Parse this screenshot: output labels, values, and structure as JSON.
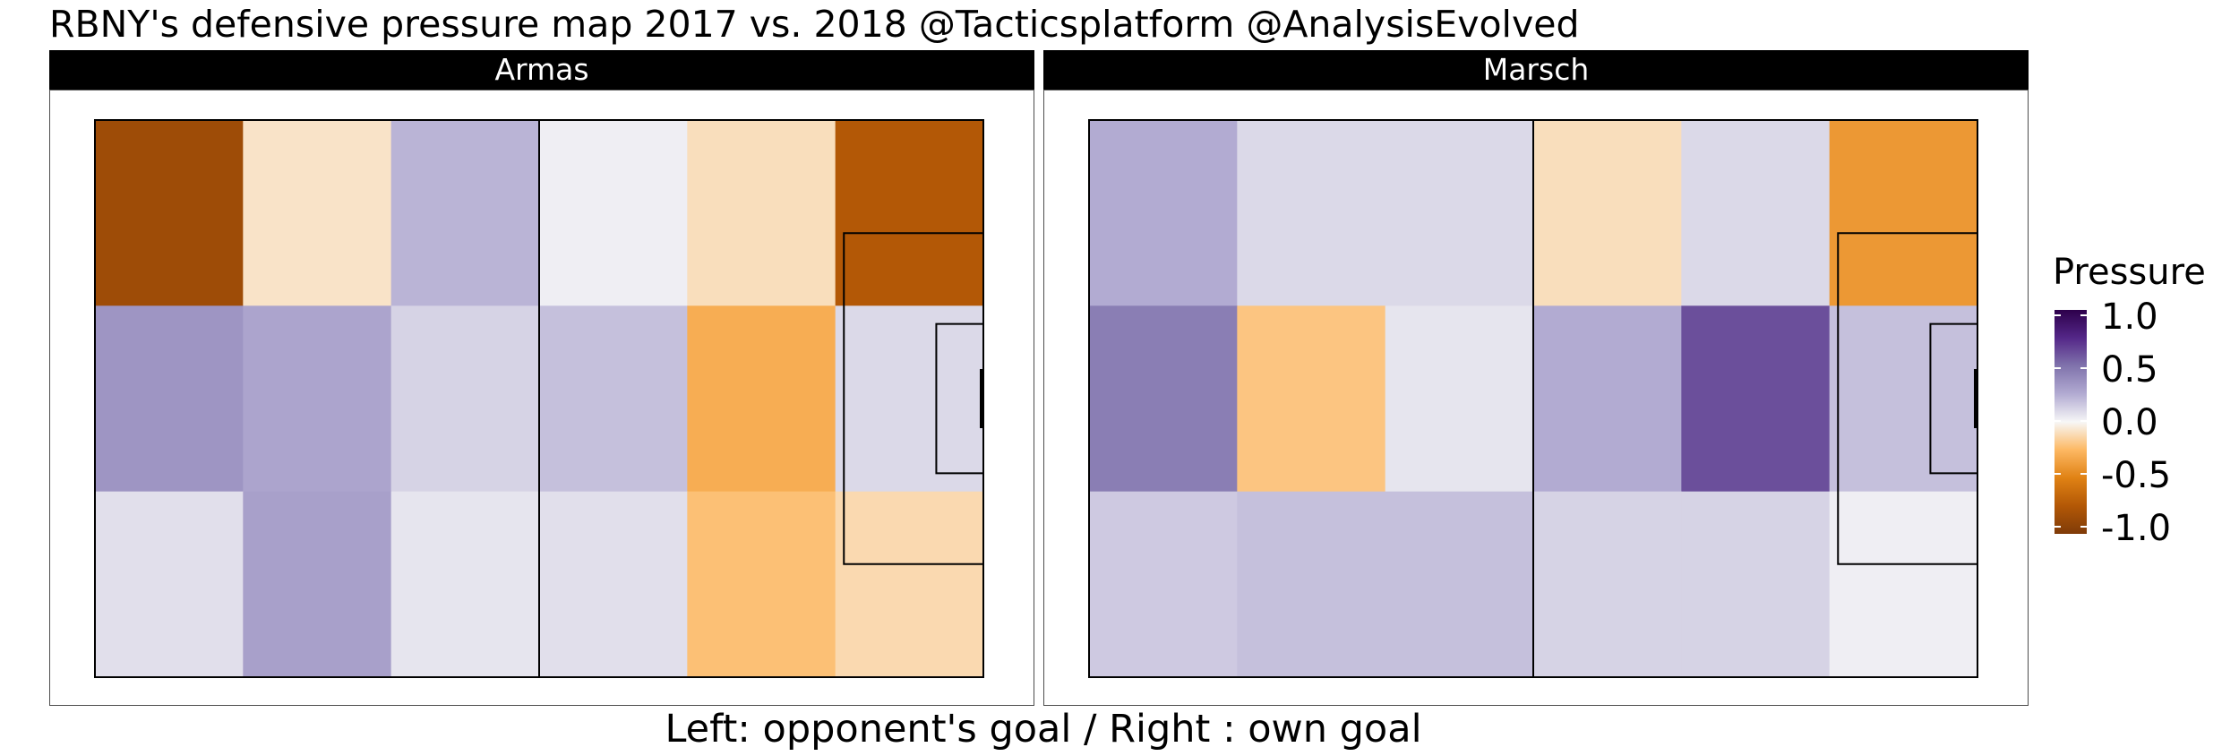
{
  "title": "RBNY's defensive pressure map 2017 vs. 2018 @Tacticsplatform @AnalysisEvolved",
  "caption": "Left: opponent's goal / Right : own goal",
  "legend": {
    "title": "Pressure",
    "ticks": [
      "1.0",
      "0.5",
      "0.0",
      "-0.5",
      "-1.0"
    ]
  },
  "chart_data": {
    "type": "heatmap",
    "title": "RBNY's defensive pressure map 2017 vs. 2018 @Tacticsplatform @AnalysisEvolved",
    "xlabel": "Left: opponent's goal / Right : own goal",
    "value_range": [
      -1.0,
      1.0
    ],
    "legend_title": "Pressure",
    "legend_placement": "right",
    "colormap": "diverging orange-white-purple (PuOr)",
    "grid_shape": {
      "rows": 3,
      "cols": 6
    },
    "panels": [
      {
        "name": "Armas",
        "values": [
          [
            -0.85,
            -0.08,
            0.22,
            0.03,
            -0.1,
            -0.75
          ],
          [
            0.35,
            0.28,
            0.12,
            0.18,
            -0.3,
            0.1
          ],
          [
            0.08,
            0.3,
            0.06,
            0.08,
            -0.22,
            -0.12
          ]
        ]
      },
      {
        "name": "Marsch",
        "values": [
          [
            0.25,
            0.1,
            0.1,
            -0.1,
            0.1,
            -0.4
          ],
          [
            0.45,
            -0.2,
            0.06,
            0.25,
            0.62,
            0.18
          ],
          [
            0.15,
            0.18,
            0.18,
            0.12,
            0.12,
            0.03
          ]
        ]
      }
    ]
  }
}
